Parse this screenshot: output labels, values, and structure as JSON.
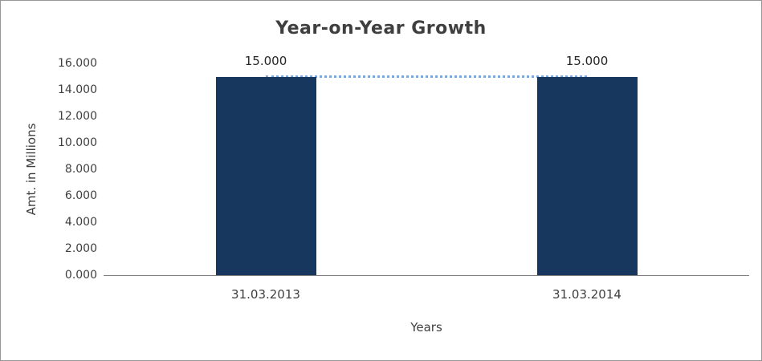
{
  "chart_data": {
    "type": "bar",
    "title": "Year-on-Year Growth",
    "xlabel": "Years",
    "ylabel": "Amt. in Millions",
    "categories": [
      "31.03.2013",
      "31.03.2014"
    ],
    "values": [
      15000,
      15000
    ],
    "value_labels": [
      "15.000",
      "15.000"
    ],
    "ylim": [
      0,
      16000
    ],
    "ytick_values": [
      0,
      2000,
      4000,
      6000,
      8000,
      10000,
      12000,
      14000,
      16000
    ],
    "ytick_labels": [
      "0.000",
      "2.000",
      "4.000",
      "6.000",
      "8.000",
      "10.000",
      "12.000",
      "14.000",
      "16.000"
    ],
    "grid": false,
    "legend": "none",
    "bar_color": "#17375e",
    "trendline": {
      "style": "dotted",
      "color": "#7da7d8",
      "level": 15000
    }
  }
}
